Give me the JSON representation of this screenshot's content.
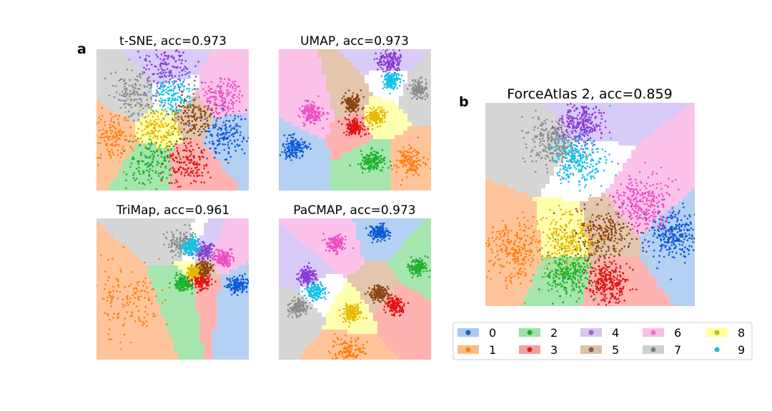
{
  "figure": {
    "panel_letters": {
      "a": "a",
      "b": "b"
    }
  },
  "chart_data": [
    {
      "id": "tsne",
      "type": "scatter",
      "title": "t-SNE, acc=0.973",
      "xlabel": "",
      "ylabel": "",
      "axes_visible": false,
      "grid": false,
      "clusters": [
        {
          "label": "0",
          "cx": 0.86,
          "cy": 0.4,
          "spread": 0.08
        },
        {
          "label": "1",
          "cx": 0.1,
          "cy": 0.38,
          "spread": 0.08
        },
        {
          "label": "2",
          "cx": 0.37,
          "cy": 0.2,
          "spread": 0.08
        },
        {
          "label": "3",
          "cx": 0.61,
          "cy": 0.19,
          "spread": 0.08
        },
        {
          "label": "4",
          "cx": 0.46,
          "cy": 0.87,
          "spread": 0.08
        },
        {
          "label": "5",
          "cx": 0.63,
          "cy": 0.52,
          "spread": 0.07
        },
        {
          "label": "6",
          "cx": 0.82,
          "cy": 0.66,
          "spread": 0.07
        },
        {
          "label": "7",
          "cx": 0.25,
          "cy": 0.67,
          "spread": 0.08
        },
        {
          "label": "8",
          "cx": 0.42,
          "cy": 0.44,
          "spread": 0.07
        },
        {
          "label": "9",
          "cx": 0.5,
          "cy": 0.67,
          "spread": 0.07
        }
      ]
    },
    {
      "id": "umap",
      "type": "scatter",
      "title": "UMAP, acc=0.973",
      "xlabel": "",
      "ylabel": "",
      "axes_visible": false,
      "grid": false,
      "clusters": [
        {
          "label": "0",
          "cx": 0.1,
          "cy": 0.3,
          "spread": 0.04
        },
        {
          "label": "1",
          "cx": 0.86,
          "cy": 0.2,
          "spread": 0.05
        },
        {
          "label": "2",
          "cx": 0.62,
          "cy": 0.21,
          "spread": 0.04
        },
        {
          "label": "3",
          "cx": 0.5,
          "cy": 0.45,
          "spread": 0.03
        },
        {
          "label": "4",
          "cx": 0.73,
          "cy": 0.91,
          "spread": 0.04
        },
        {
          "label": "5",
          "cx": 0.48,
          "cy": 0.62,
          "spread": 0.03
        },
        {
          "label": "6",
          "cx": 0.22,
          "cy": 0.55,
          "spread": 0.04
        },
        {
          "label": "7",
          "cx": 0.92,
          "cy": 0.72,
          "spread": 0.03
        },
        {
          "label": "8",
          "cx": 0.64,
          "cy": 0.52,
          "spread": 0.03
        },
        {
          "label": "9",
          "cx": 0.74,
          "cy": 0.78,
          "spread": 0.03
        }
      ]
    },
    {
      "id": "trimap",
      "type": "scatter",
      "title": "TriMap, acc=0.961",
      "xlabel": "",
      "ylabel": "",
      "axes_visible": false,
      "grid": false,
      "clusters": [
        {
          "label": "0",
          "cx": 0.93,
          "cy": 0.53,
          "spread": 0.03
        },
        {
          "label": "1",
          "cx": 0.2,
          "cy": 0.4,
          "spread": 0.13
        },
        {
          "label": "2",
          "cx": 0.57,
          "cy": 0.54,
          "spread": 0.03
        },
        {
          "label": "3",
          "cx": 0.69,
          "cy": 0.56,
          "spread": 0.03
        },
        {
          "label": "4",
          "cx": 0.7,
          "cy": 0.77,
          "spread": 0.03
        },
        {
          "label": "5",
          "cx": 0.7,
          "cy": 0.64,
          "spread": 0.03
        },
        {
          "label": "6",
          "cx": 0.83,
          "cy": 0.72,
          "spread": 0.03
        },
        {
          "label": "7",
          "cx": 0.56,
          "cy": 0.82,
          "spread": 0.05
        },
        {
          "label": "8",
          "cx": 0.64,
          "cy": 0.62,
          "spread": 0.02
        },
        {
          "label": "9",
          "cx": 0.62,
          "cy": 0.8,
          "spread": 0.03
        }
      ]
    },
    {
      "id": "pacmap",
      "type": "scatter",
      "title": "PaCMAP, acc=0.973",
      "xlabel": "",
      "ylabel": "",
      "axes_visible": false,
      "grid": false,
      "clusters": [
        {
          "label": "0",
          "cx": 0.66,
          "cy": 0.9,
          "spread": 0.03
        },
        {
          "label": "1",
          "cx": 0.46,
          "cy": 0.06,
          "spread": 0.05
        },
        {
          "label": "2",
          "cx": 0.91,
          "cy": 0.66,
          "spread": 0.03
        },
        {
          "label": "3",
          "cx": 0.76,
          "cy": 0.38,
          "spread": 0.03
        },
        {
          "label": "4",
          "cx": 0.19,
          "cy": 0.59,
          "spread": 0.03
        },
        {
          "label": "5",
          "cx": 0.66,
          "cy": 0.47,
          "spread": 0.03
        },
        {
          "label": "6",
          "cx": 0.38,
          "cy": 0.82,
          "spread": 0.03
        },
        {
          "label": "7",
          "cx": 0.13,
          "cy": 0.37,
          "spread": 0.03
        },
        {
          "label": "8",
          "cx": 0.48,
          "cy": 0.33,
          "spread": 0.03
        },
        {
          "label": "9",
          "cx": 0.24,
          "cy": 0.48,
          "spread": 0.03
        }
      ]
    },
    {
      "id": "forceatlas",
      "type": "scatter",
      "title": "ForceAtlas 2, acc=0.859",
      "xlabel": "",
      "ylabel": "",
      "axes_visible": false,
      "grid": false,
      "clusters": [
        {
          "label": "0",
          "cx": 0.9,
          "cy": 0.35,
          "spread": 0.06
        },
        {
          "label": "1",
          "cx": 0.13,
          "cy": 0.28,
          "spread": 0.07
        },
        {
          "label": "2",
          "cx": 0.4,
          "cy": 0.16,
          "spread": 0.06
        },
        {
          "label": "3",
          "cx": 0.58,
          "cy": 0.12,
          "spread": 0.05
        },
        {
          "label": "4",
          "cx": 0.46,
          "cy": 0.9,
          "spread": 0.05
        },
        {
          "label": "5",
          "cx": 0.57,
          "cy": 0.35,
          "spread": 0.07
        },
        {
          "label": "6",
          "cx": 0.76,
          "cy": 0.5,
          "spread": 0.07
        },
        {
          "label": "7",
          "cx": 0.32,
          "cy": 0.8,
          "spread": 0.06
        },
        {
          "label": "8",
          "cx": 0.4,
          "cy": 0.32,
          "spread": 0.07
        },
        {
          "label": "9",
          "cx": 0.45,
          "cy": 0.72,
          "spread": 0.06
        }
      ]
    }
  ],
  "legend": {
    "placement": "bottom-right",
    "entries": [
      {
        "label": "0",
        "dot": "#1f5fb4",
        "patch": "#a9c9f0"
      },
      {
        "label": "1",
        "dot": "#ff7f0e",
        "patch": "#ffbb85"
      },
      {
        "label": "2",
        "dot": "#22aa33",
        "patch": "#9ee3a5"
      },
      {
        "label": "3",
        "dot": "#d62728",
        "patch": "#f4a0a0"
      },
      {
        "label": "4",
        "dot": "#9467bd",
        "patch": "#d5c6f0"
      },
      {
        "label": "5",
        "dot": "#8c564b",
        "patch": "#dcc1a6"
      },
      {
        "label": "6",
        "dot": "#e377c2",
        "patch": "#fbbfe6"
      },
      {
        "label": "7",
        "dot": "#7f7f7f",
        "patch": "#cfcfcf"
      },
      {
        "label": "8",
        "dot": "#bcbd22",
        "patch": "#ffff99"
      },
      {
        "label": "9",
        "dot": "#17becf",
        "patch": "#ffffff"
      }
    ]
  },
  "colors": {
    "0": {
      "dot": "#0a5ad8",
      "region": "#b4d0f2"
    },
    "1": {
      "dot": "#ff7f0e",
      "region": "#ffc49a"
    },
    "2": {
      "dot": "#1fb02c",
      "region": "#a4e6ad"
    },
    "3": {
      "dot": "#e01414",
      "region": "#ffb3b0"
    },
    "4": {
      "dot": "#8a3bd4",
      "region": "#d9cbf8"
    },
    "5": {
      "dot": "#8b4513",
      "region": "#e3c6ad"
    },
    "6": {
      "dot": "#ea4fc4",
      "region": "#fcc2ea"
    },
    "7": {
      "dot": "#8c8c8c",
      "region": "#d6d6d6"
    },
    "8": {
      "dot": "#e6b800",
      "region": "#ffffb0"
    },
    "9": {
      "dot": "#14c1e8",
      "region": "#ffffff"
    }
  }
}
